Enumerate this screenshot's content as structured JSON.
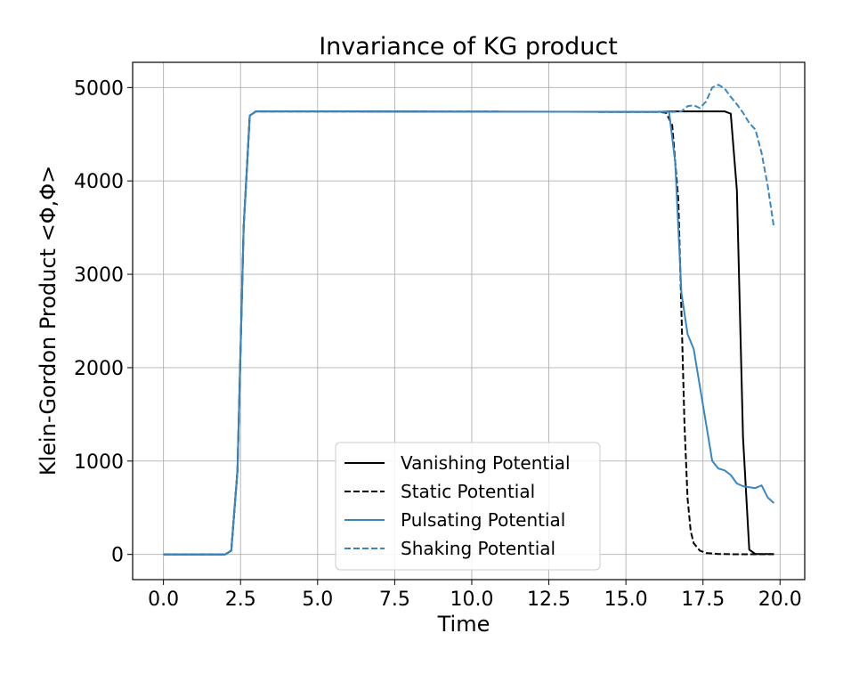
{
  "chart_data": {
    "type": "line",
    "title": "Invariance of KG product",
    "xlabel": "Time",
    "ylabel": "Klein-Gordon Product <Φ,Φ>",
    "xlim": [
      -1.0,
      20.8
    ],
    "ylim": [
      -270,
      5270
    ],
    "xticks": [
      0.0,
      2.5,
      5.0,
      7.5,
      10.0,
      12.5,
      15.0,
      17.5,
      20.0
    ],
    "xtick_labels": [
      "0.0",
      "2.5",
      "5.0",
      "7.5",
      "10.0",
      "12.5",
      "15.0",
      "17.5",
      "20.0"
    ],
    "yticks": [
      0,
      1000,
      2000,
      3000,
      4000,
      5000
    ],
    "ytick_labels": [
      "0",
      "1000",
      "2000",
      "3000",
      "4000",
      "5000"
    ],
    "grid": true,
    "legend_position": "bottom-center",
    "series": [
      {
        "name": "Vanishing Potential",
        "color": "#000000",
        "dash": "solid",
        "x": [
          0,
          2.0,
          2.2,
          2.4,
          2.6,
          2.8,
          3.0,
          5,
          10,
          15,
          16.0,
          16.5,
          17.0,
          17.5,
          18.0,
          18.2,
          18.4,
          18.6,
          18.8,
          19.0,
          19.2,
          19.8
        ],
        "y": [
          0,
          0,
          40,
          900,
          3500,
          4700,
          4745,
          4745,
          4742,
          4740,
          4740,
          4745,
          4745,
          4745,
          4745,
          4745,
          4720,
          3900,
          1250,
          50,
          5,
          5
        ]
      },
      {
        "name": "Static Potential",
        "color": "#000000",
        "dash": "dashed",
        "x": [
          0,
          2.0,
          2.2,
          2.4,
          2.6,
          2.8,
          3.0,
          5,
          10,
          15,
          16.0,
          16.3,
          16.5,
          16.7,
          16.8,
          16.9,
          17.0,
          17.1,
          17.2,
          17.4,
          17.6,
          18.0,
          18.5,
          19.8
        ],
        "y": [
          0,
          0,
          40,
          900,
          3500,
          4700,
          4745,
          4745,
          4742,
          4740,
          4740,
          4730,
          4600,
          3800,
          2600,
          1400,
          600,
          250,
          120,
          40,
          15,
          5,
          2,
          2
        ]
      },
      {
        "name": "Pulsating Potential",
        "color": "#3a86c0",
        "dash": "solid",
        "x": [
          0,
          2.0,
          2.2,
          2.4,
          2.6,
          2.8,
          3.0,
          5,
          10,
          15,
          16.0,
          16.4,
          16.6,
          16.8,
          17.0,
          17.2,
          17.4,
          17.6,
          17.8,
          18.0,
          18.2,
          18.4,
          18.6,
          18.8,
          19.0,
          19.2,
          19.4,
          19.6,
          19.8
        ],
        "y": [
          0,
          0,
          40,
          900,
          3500,
          4700,
          4745,
          4745,
          4742,
          4740,
          4740,
          4740,
          4200,
          2800,
          2360,
          2200,
          1800,
          1400,
          1000,
          920,
          900,
          850,
          760,
          730,
          720,
          710,
          740,
          610,
          550
        ]
      },
      {
        "name": "Shaking Potential",
        "color": "#3a86c0",
        "dash": "dashed",
        "x": [
          0,
          2.0,
          2.2,
          2.4,
          2.6,
          2.8,
          3.0,
          5,
          10,
          15,
          16.0,
          16.6,
          16.8,
          17.0,
          17.2,
          17.4,
          17.6,
          17.8,
          18.0,
          18.2,
          18.4,
          18.6,
          18.8,
          19.0,
          19.2,
          19.4,
          19.6,
          19.8
        ],
        "y": [
          0,
          0,
          40,
          900,
          3500,
          4700,
          4745,
          4745,
          4742,
          4740,
          4740,
          4740,
          4745,
          4800,
          4810,
          4780,
          4850,
          5000,
          5030,
          4990,
          4900,
          4820,
          4730,
          4620,
          4550,
          4300,
          3950,
          3500
        ]
      }
    ]
  }
}
